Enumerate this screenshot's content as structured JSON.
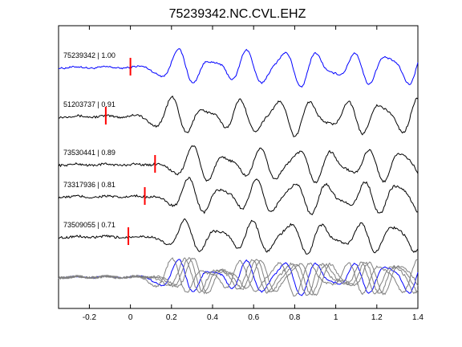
{
  "chart_data": {
    "type": "line",
    "title": "75239342.NC.CVL.EHZ",
    "xlabel": "",
    "ylabel": "",
    "xlim": [
      -0.35,
      1.4
    ],
    "x_ticks": [
      -0.2,
      0,
      0.2,
      0.4,
      0.6,
      0.8,
      1,
      1.2,
      1.4
    ],
    "x_tick_labels": [
      "-0.2",
      "0",
      "0.2",
      "0.4",
      "0.6",
      "0.8",
      "1",
      "1.2",
      "1.4"
    ],
    "grid": false,
    "colors": {
      "reference": "#0000ff",
      "trace": "#000000",
      "stack_other": "#808080",
      "pick": "#ff0000"
    },
    "series": [
      {
        "label": "75239342 | 1.00",
        "pick_time": 0.0,
        "shift": 0.0,
        "noise": 0.0
      },
      {
        "label": "51203737 | 0.91",
        "pick_time": -0.12,
        "shift": -0.03,
        "noise": 0.15
      },
      {
        "label": "73530441 | 0.89",
        "pick_time": 0.12,
        "shift": 0.07,
        "noise": 0.2
      },
      {
        "label": "73317936 | 0.81",
        "pick_time": 0.07,
        "shift": 0.05,
        "noise": 0.25
      },
      {
        "label": "73509055 | 0.71",
        "pick_time": -0.01,
        "shift": 0.03,
        "noise": 0.3
      }
    ]
  }
}
